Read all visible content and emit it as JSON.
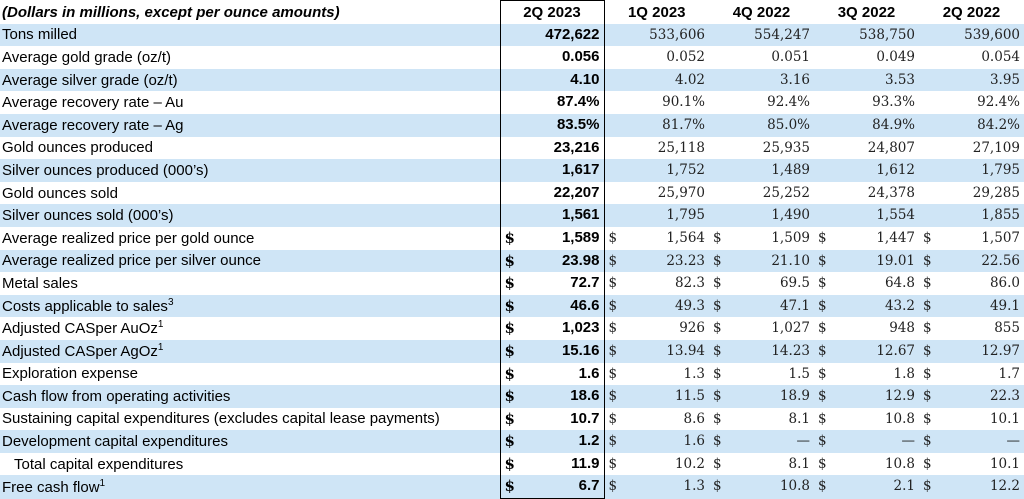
{
  "header": {
    "label": "(Dollars in millions, except per ounce amounts)",
    "periods": [
      "2Q 2023",
      "1Q 2023",
      "4Q 2022",
      "3Q 2022",
      "2Q 2022"
    ]
  },
  "rows": [
    {
      "label": "Tons milled",
      "values": [
        "472,622",
        "533,606",
        "554,247",
        "538,750",
        "539,600"
      ]
    },
    {
      "label": "Average gold grade (oz/t)",
      "values": [
        "0.056",
        "0.052",
        "0.051",
        "0.049",
        "0.054"
      ]
    },
    {
      "label": "Average silver grade (oz/t)",
      "values": [
        "4.10",
        "4.02",
        "3.16",
        "3.53",
        "3.95"
      ]
    },
    {
      "label": "Average recovery rate – Au",
      "values": [
        "87.4%",
        "90.1%",
        "92.4%",
        "93.3%",
        "92.4%"
      ]
    },
    {
      "label": "Average recovery rate – Ag",
      "values": [
        "83.5%",
        "81.7%",
        "85.0%",
        "84.9%",
        "84.2%"
      ]
    },
    {
      "label": "Gold ounces produced",
      "values": [
        "23,216",
        "25,118",
        "25,935",
        "24,807",
        "27,109"
      ]
    },
    {
      "label": "Silver ounces produced (000’s)",
      "values": [
        "1,617",
        "1,752",
        "1,489",
        "1,612",
        "1,795"
      ]
    },
    {
      "label": "Gold ounces sold",
      "values": [
        "22,207",
        "25,970",
        "25,252",
        "24,378",
        "29,285"
      ]
    },
    {
      "label": "Silver ounces sold (000’s)",
      "values": [
        "1,561",
        "1,795",
        "1,490",
        "1,554",
        "1,855"
      ]
    },
    {
      "label": "Average realized price per gold ounce",
      "values": [
        "1,589",
        "1,564",
        "1,509",
        "1,447",
        "1,507"
      ]
    },
    {
      "label": "Average realized price per silver ounce",
      "values": [
        "23.98",
        "23.23",
        "21.10",
        "19.01",
        "22.56"
      ]
    },
    {
      "label": "Metal sales",
      "values": [
        "72.7",
        "82.3",
        "69.5",
        "64.8",
        "86.0"
      ]
    },
    {
      "label": "Costs applicable to sales",
      "sup": "3",
      "values": [
        "46.6",
        "49.3",
        "47.1",
        "43.2",
        "49.1"
      ]
    },
    {
      "label": "Adjusted CASper AuOz",
      "sup": "1",
      "values": [
        "1,023",
        "926",
        "1,027",
        "948",
        "855"
      ]
    },
    {
      "label": "Adjusted CASper AgOz",
      "sup": "1",
      "values": [
        "15.16",
        "13.94",
        "14.23",
        "12.67",
        "12.97"
      ]
    },
    {
      "label": "Exploration expense",
      "values": [
        "1.6",
        "1.3",
        "1.5",
        "1.8",
        "1.7"
      ]
    },
    {
      "label": "Cash flow from operating activities",
      "values": [
        "18.6",
        "11.5",
        "18.9",
        "12.9",
        "22.3"
      ]
    },
    {
      "label": "Sustaining capital expenditures (excludes capital lease payments)",
      "values": [
        "10.7",
        "8.6",
        "8.1",
        "10.8",
        "10.1"
      ]
    },
    {
      "label": "Development capital expenditures",
      "values": [
        "1.2",
        "1.6",
        "—",
        "—",
        "—"
      ]
    },
    {
      "label": "Total capital expenditures",
      "values": [
        "11.9",
        "10.2",
        "8.1",
        "10.8",
        "10.1"
      ]
    },
    {
      "label": "Free cash flow",
      "sup": "1",
      "values": [
        "6.7",
        "1.3",
        "10.8",
        "2.1",
        "12.2"
      ]
    }
  ],
  "currency_symbol": "$"
}
